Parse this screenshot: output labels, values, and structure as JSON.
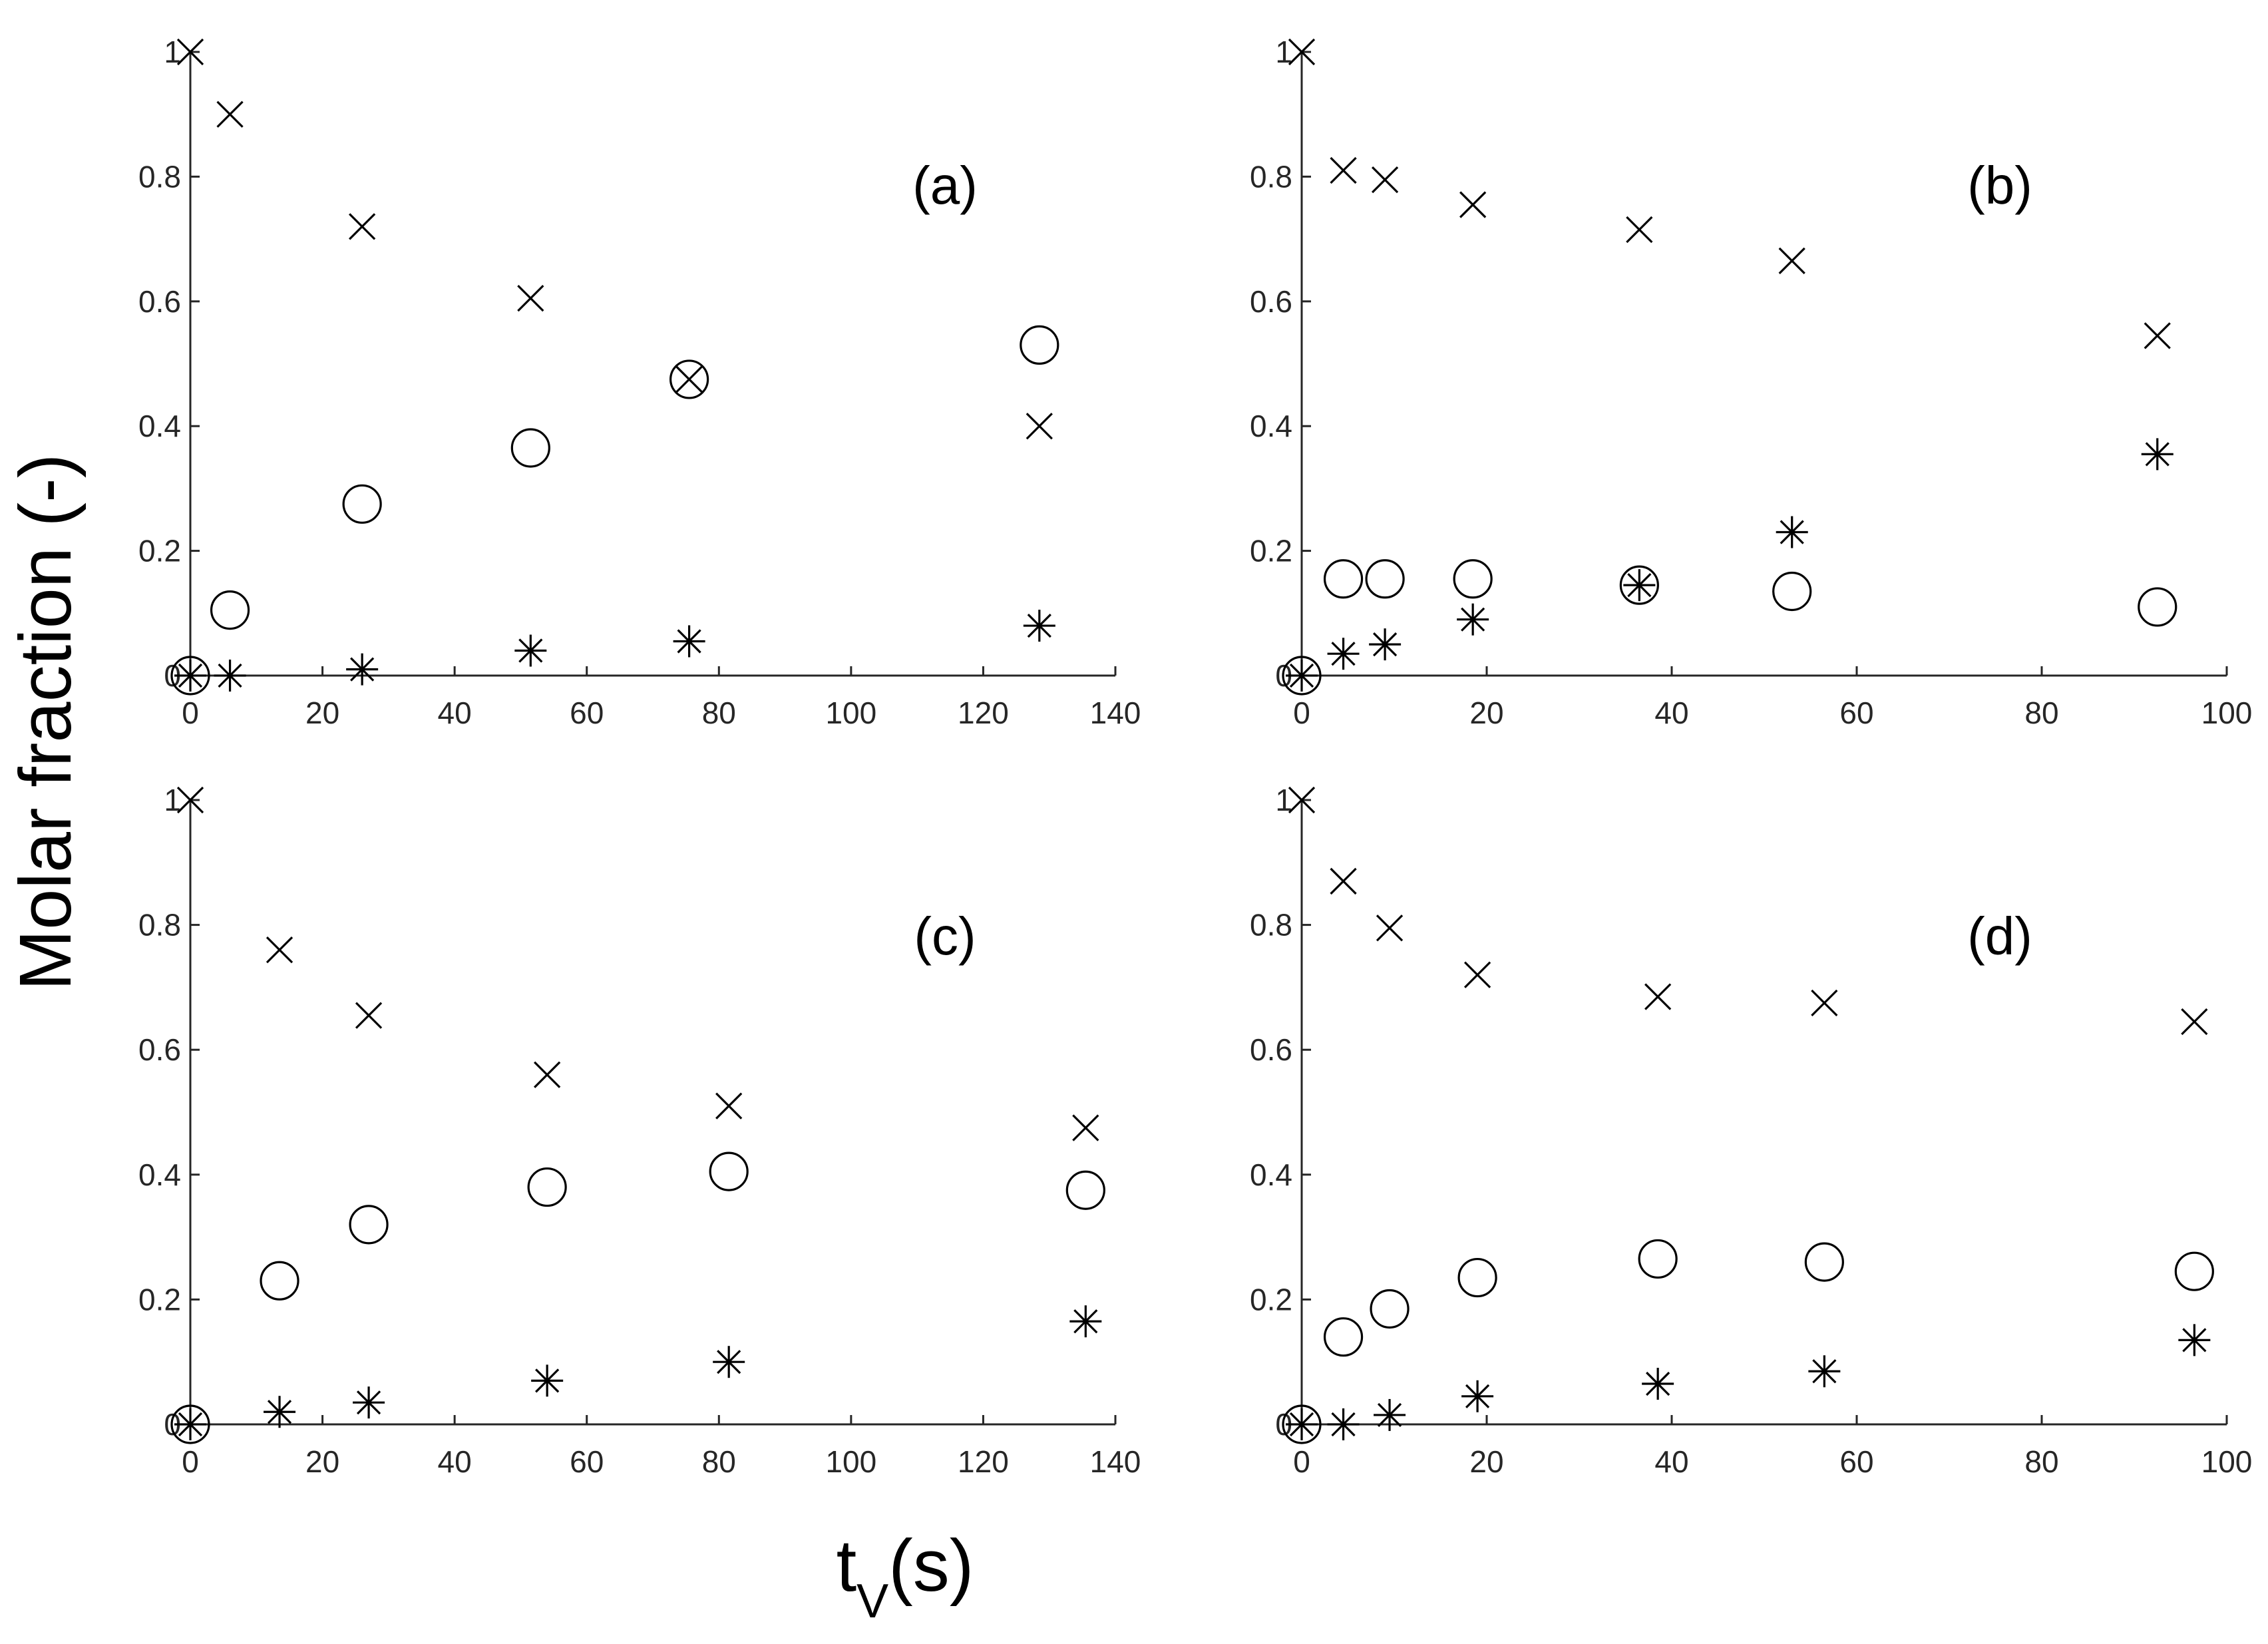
{
  "ylabel": "Molar fraction (-)",
  "xlabel_main": "t",
  "xlabel_sub": "V",
  "xlabel_rest": "(s)",
  "chart_data": [
    {
      "type": "scatter",
      "panel_label": "(a)",
      "xlim": [
        0,
        140
      ],
      "ylim": [
        0,
        1
      ],
      "xticks": [
        0,
        20,
        40,
        60,
        80,
        100,
        120,
        140
      ],
      "yticks": [
        0,
        0.2,
        0.4,
        0.6,
        0.8,
        1
      ],
      "series": [
        {
          "marker": "x",
          "points": [
            [
              0,
              1
            ],
            [
              6,
              0.9
            ],
            [
              26,
              0.72
            ],
            [
              51.5,
              0.605
            ],
            [
              75.5,
              0.475
            ],
            [
              128.5,
              0.4
            ]
          ]
        },
        {
          "marker": "o",
          "points": [
            [
              0,
              0
            ],
            [
              6,
              0.105
            ],
            [
              26,
              0.275
            ],
            [
              51.5,
              0.365
            ],
            [
              75.5,
              0.475
            ],
            [
              128.5,
              0.53
            ]
          ]
        },
        {
          "marker": "*",
          "points": [
            [
              0,
              0
            ],
            [
              6,
              0
            ],
            [
              26,
              0.01
            ],
            [
              51.5,
              0.04
            ],
            [
              75.5,
              0.055
            ],
            [
              128.5,
              0.08
            ]
          ]
        }
      ]
    },
    {
      "type": "scatter",
      "panel_label": "(b)",
      "xlim": [
        0,
        100
      ],
      "ylim": [
        0,
        1
      ],
      "xticks": [
        0,
        20,
        40,
        60,
        80,
        100
      ],
      "yticks": [
        0,
        0.2,
        0.4,
        0.6,
        0.8,
        1
      ],
      "series": [
        {
          "marker": "x",
          "points": [
            [
              0,
              1
            ],
            [
              4.5,
              0.81
            ],
            [
              9,
              0.795
            ],
            [
              18.5,
              0.755
            ],
            [
              36.5,
              0.715
            ],
            [
              53,
              0.665
            ],
            [
              92.5,
              0.545
            ]
          ]
        },
        {
          "marker": "o",
          "points": [
            [
              0,
              0
            ],
            [
              4.5,
              0.155
            ],
            [
              9,
              0.155
            ],
            [
              18.5,
              0.155
            ],
            [
              36.5,
              0.145
            ],
            [
              53,
              0.135
            ],
            [
              92.5,
              0.11
            ]
          ]
        },
        {
          "marker": "*",
          "points": [
            [
              0,
              0
            ],
            [
              4.5,
              0.035
            ],
            [
              9,
              0.05
            ],
            [
              18.5,
              0.09
            ],
            [
              36.5,
              0.145
            ],
            [
              53,
              0.23
            ],
            [
              92.5,
              0.355
            ]
          ]
        }
      ]
    },
    {
      "type": "scatter",
      "panel_label": "(c)",
      "xlim": [
        0,
        140
      ],
      "ylim": [
        0,
        1
      ],
      "xticks": [
        0,
        20,
        40,
        60,
        80,
        100,
        120,
        140
      ],
      "yticks": [
        0,
        0.2,
        0.4,
        0.6,
        0.8,
        1
      ],
      "series": [
        {
          "marker": "x",
          "points": [
            [
              0,
              1
            ],
            [
              13.5,
              0.76
            ],
            [
              27,
              0.655
            ],
            [
              54,
              0.56
            ],
            [
              81.5,
              0.51
            ],
            [
              135.5,
              0.475
            ]
          ]
        },
        {
          "marker": "o",
          "points": [
            [
              0,
              0
            ],
            [
              13.5,
              0.23
            ],
            [
              27,
              0.32
            ],
            [
              54,
              0.38
            ],
            [
              81.5,
              0.405
            ],
            [
              135.5,
              0.375
            ]
          ]
        },
        {
          "marker": "*",
          "points": [
            [
              0,
              0
            ],
            [
              13.5,
              0.02
            ],
            [
              27,
              0.035
            ],
            [
              54,
              0.07
            ],
            [
              81.5,
              0.1
            ],
            [
              135.5,
              0.165
            ]
          ]
        }
      ]
    },
    {
      "type": "scatter",
      "panel_label": "(d)",
      "xlim": [
        0,
        100
      ],
      "ylim": [
        0,
        1
      ],
      "xticks": [
        0,
        20,
        40,
        60,
        80,
        100
      ],
      "yticks": [
        0,
        0.2,
        0.4,
        0.6,
        0.8,
        1
      ],
      "series": [
        {
          "marker": "x",
          "points": [
            [
              0,
              1
            ],
            [
              4.5,
              0.87
            ],
            [
              9.5,
              0.795
            ],
            [
              19,
              0.72
            ],
            [
              38.5,
              0.685
            ],
            [
              56.5,
              0.675
            ],
            [
              96.5,
              0.645
            ]
          ]
        },
        {
          "marker": "o",
          "points": [
            [
              0,
              0
            ],
            [
              4.5,
              0.14
            ],
            [
              9.5,
              0.185
            ],
            [
              19,
              0.235
            ],
            [
              38.5,
              0.265
            ],
            [
              56.5,
              0.26
            ],
            [
              96.5,
              0.245
            ]
          ]
        },
        {
          "marker": "*",
          "points": [
            [
              0,
              0
            ],
            [
              4.5,
              0
            ],
            [
              9.5,
              0.015
            ],
            [
              19,
              0.045
            ],
            [
              38.5,
              0.065
            ],
            [
              56.5,
              0.085
            ],
            [
              96.5,
              0.135
            ]
          ]
        }
      ]
    }
  ]
}
